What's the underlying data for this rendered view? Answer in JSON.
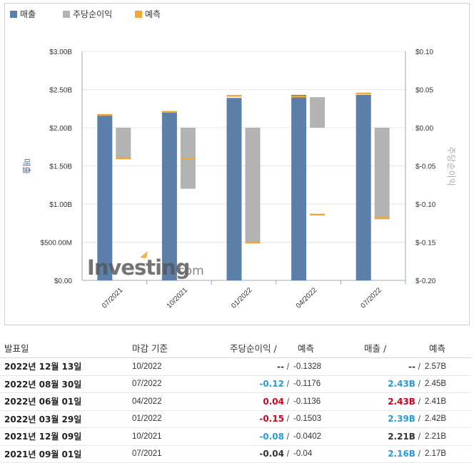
{
  "legend": [
    {
      "label": "매출",
      "color": "#5b7fa8"
    },
    {
      "label": "주당순이익",
      "color": "#b3b3b3"
    },
    {
      "label": "예측",
      "color": "#f0a830"
    }
  ],
  "watermark": {
    "brand": "Investing",
    "suffix": ".com"
  },
  "chart_data": {
    "type": "bar",
    "categories": [
      "07/2021",
      "10/2021",
      "01/2022",
      "04/2022",
      "07/2022"
    ],
    "series": [
      {
        "name": "매출",
        "axis": "left",
        "values": [
          2.16,
          2.21,
          2.39,
          2.43,
          2.43
        ],
        "unit": "B"
      },
      {
        "name": "주당순이익",
        "axis": "right",
        "values": [
          -0.04,
          -0.08,
          -0.15,
          0.04,
          -0.12
        ]
      },
      {
        "name": "예측",
        "axis": "right",
        "values": [
          -0.04,
          -0.0402,
          -0.1503,
          -0.1136,
          -0.1176
        ]
      },
      {
        "name": "예측",
        "axis": "left",
        "values": [
          2.17,
          2.21,
          2.42,
          2.41,
          2.45
        ],
        "unit": "B"
      }
    ],
    "left_axis": {
      "label": "매출",
      "ticks": [
        "$3.00B",
        "$2.50B",
        "$2.00B",
        "$1.50B",
        "$1.00B",
        "$500.00M",
        "$0.00"
      ],
      "ylim": [
        0,
        3.0
      ]
    },
    "right_axis": {
      "label": "주당순이익",
      "ticks": [
        "$0.10",
        "$0.05",
        "$0.00",
        "$-0.05",
        "$-0.10",
        "$-0.15",
        "$-0.20"
      ],
      "ylim": [
        -0.2,
        0.1
      ]
    },
    "legend_position": "top-left",
    "grid": "horizontal"
  },
  "table": {
    "headers": {
      "date": "발표일",
      "period": "마감 기준",
      "eps": "주당순이익",
      "forecast1": "예측",
      "revenue": "매출",
      "forecast2": "예측",
      "slash": "/"
    },
    "rows": [
      {
        "date": "2022년 12월 13일",
        "period": "10/2022",
        "eps": "--",
        "eps_forecast": "-0.1328",
        "revenue": "--",
        "revenue_forecast": "2.57B",
        "eps_color": "#333333",
        "rev_color": "#333333"
      },
      {
        "date": "2022년 08월 30일",
        "period": "07/2022",
        "eps": "-0.12",
        "eps_forecast": "-0.1176",
        "revenue": "2.43B",
        "revenue_forecast": "2.45B",
        "eps_color": "#2a9ad6",
        "rev_color": "#2a9ad6"
      },
      {
        "date": "2022년 06월 01일",
        "period": "04/2022",
        "eps": "0.04",
        "eps_forecast": "-0.1136",
        "revenue": "2.43B",
        "revenue_forecast": "2.41B",
        "eps_color": "#d0021b",
        "rev_color": "#d0021b"
      },
      {
        "date": "2022년 03월 29일",
        "period": "01/2022",
        "eps": "-0.15",
        "eps_forecast": "-0.1503",
        "revenue": "2.39B",
        "revenue_forecast": "2.42B",
        "eps_color": "#d0021b",
        "rev_color": "#2a9ad6"
      },
      {
        "date": "2021년 12월 09일",
        "period": "10/2021",
        "eps": "-0.08",
        "eps_forecast": "-0.0402",
        "revenue": "2.21B",
        "revenue_forecast": "2.21B",
        "eps_color": "#2a9ad6",
        "rev_color": "#333333"
      },
      {
        "date": "2021년 09월 01일",
        "period": "07/2021",
        "eps": "-0.04",
        "eps_forecast": "-0.04",
        "revenue": "2.16B",
        "revenue_forecast": "2.17B",
        "eps_color": "#333333",
        "rev_color": "#2a9ad6"
      }
    ]
  }
}
